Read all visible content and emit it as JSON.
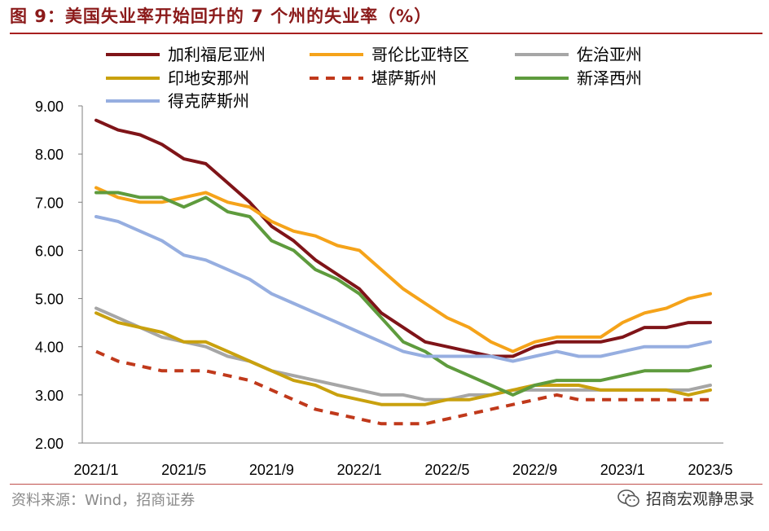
{
  "figure": {
    "title": "图 9：美国失业率开始回升的 7 个州的失业率（%）",
    "source": "资料来源：Wind，招商证券",
    "brand": "招商宏观静思录"
  },
  "chart_data": {
    "type": "line",
    "title": "美国失业率开始回升的 7 个州的失业率（%）",
    "xlabel": "",
    "ylabel": "",
    "ylim": [
      2,
      9
    ],
    "yticks": [
      "9.00",
      "8.00",
      "7.00",
      "6.00",
      "5.00",
      "4.00",
      "3.00",
      "2.00"
    ],
    "ytick_values": [
      9,
      8,
      7,
      6,
      5,
      4,
      3,
      2
    ],
    "x": [
      "2021/1",
      "2021/2",
      "2021/3",
      "2021/4",
      "2021/5",
      "2021/6",
      "2021/7",
      "2021/8",
      "2021/9",
      "2021/10",
      "2021/11",
      "2021/12",
      "2022/1",
      "2022/2",
      "2022/3",
      "2022/4",
      "2022/5",
      "2022/6",
      "2022/7",
      "2022/8",
      "2022/9",
      "2022/10",
      "2022/11",
      "2022/12",
      "2023/1",
      "2023/2",
      "2023/3",
      "2023/4",
      "2023/5"
    ],
    "xticks": [
      "2021/1",
      "2021/5",
      "2021/9",
      "2022/1",
      "2022/5",
      "2022/9",
      "2023/1",
      "2023/5"
    ],
    "xtick_index": [
      0,
      4,
      8,
      12,
      16,
      20,
      24,
      28
    ],
    "legend_position": "top-left",
    "series": [
      {
        "name": "加利福尼亚州",
        "color": "#7f1418",
        "dash": "solid",
        "values": [
          8.7,
          8.5,
          8.4,
          8.2,
          7.9,
          7.8,
          7.4,
          7.0,
          6.5,
          6.2,
          5.8,
          5.5,
          5.2,
          4.7,
          4.4,
          4.1,
          4.0,
          3.9,
          3.8,
          3.8,
          4.0,
          4.1,
          4.1,
          4.1,
          4.2,
          4.4,
          4.4,
          4.5,
          4.5
        ]
      },
      {
        "name": "哥伦比亚特区",
        "color": "#f5a31a",
        "dash": "solid",
        "values": [
          7.3,
          7.1,
          7.0,
          7.0,
          7.1,
          7.2,
          7.0,
          6.9,
          6.6,
          6.4,
          6.3,
          6.1,
          6.0,
          5.6,
          5.2,
          4.9,
          4.6,
          4.4,
          4.1,
          3.9,
          4.1,
          4.2,
          4.2,
          4.2,
          4.5,
          4.7,
          4.8,
          5.0,
          5.1
        ]
      },
      {
        "name": "佐治亚州",
        "color": "#a6a6a6",
        "dash": "solid",
        "values": [
          4.8,
          4.6,
          4.4,
          4.2,
          4.1,
          4.0,
          3.8,
          3.7,
          3.5,
          3.4,
          3.3,
          3.2,
          3.1,
          3.0,
          3.0,
          2.9,
          2.9,
          3.0,
          3.0,
          3.1,
          3.1,
          3.1,
          3.1,
          3.1,
          3.1,
          3.1,
          3.1,
          3.1,
          3.2
        ]
      },
      {
        "name": "印地安那州",
        "color": "#c9a10e",
        "dash": "solid",
        "values": [
          4.7,
          4.5,
          4.4,
          4.3,
          4.1,
          4.1,
          3.9,
          3.7,
          3.5,
          3.3,
          3.2,
          3.0,
          2.9,
          2.8,
          2.8,
          2.8,
          2.9,
          2.9,
          3.0,
          3.1,
          3.2,
          3.2,
          3.2,
          3.1,
          3.1,
          3.1,
          3.1,
          3.0,
          3.1
        ]
      },
      {
        "name": "堪萨斯州",
        "color": "#c0391b",
        "dash": "dashed",
        "values": [
          3.9,
          3.7,
          3.6,
          3.5,
          3.5,
          3.5,
          3.4,
          3.3,
          3.1,
          2.9,
          2.7,
          2.6,
          2.5,
          2.4,
          2.4,
          2.4,
          2.5,
          2.6,
          2.7,
          2.8,
          2.9,
          3.0,
          2.9,
          2.9,
          2.9,
          2.9,
          2.9,
          2.9,
          2.9
        ]
      },
      {
        "name": "新泽西州",
        "color": "#5e9b3d",
        "dash": "solid",
        "values": [
          7.2,
          7.2,
          7.1,
          7.1,
          6.9,
          7.1,
          6.8,
          6.7,
          6.2,
          6.0,
          5.6,
          5.4,
          5.1,
          4.6,
          4.1,
          3.9,
          3.6,
          3.4,
          3.2,
          3.0,
          3.2,
          3.3,
          3.3,
          3.3,
          3.4,
          3.5,
          3.5,
          3.5,
          3.6
        ]
      },
      {
        "name": "得克萨斯州",
        "color": "#96aee0",
        "dash": "solid",
        "values": [
          6.7,
          6.6,
          6.4,
          6.2,
          5.9,
          5.8,
          5.6,
          5.4,
          5.1,
          4.9,
          4.7,
          4.5,
          4.3,
          4.1,
          3.9,
          3.8,
          3.8,
          3.8,
          3.8,
          3.7,
          3.8,
          3.9,
          3.8,
          3.8,
          3.9,
          4.0,
          4.0,
          4.0,
          4.1
        ]
      }
    ]
  }
}
